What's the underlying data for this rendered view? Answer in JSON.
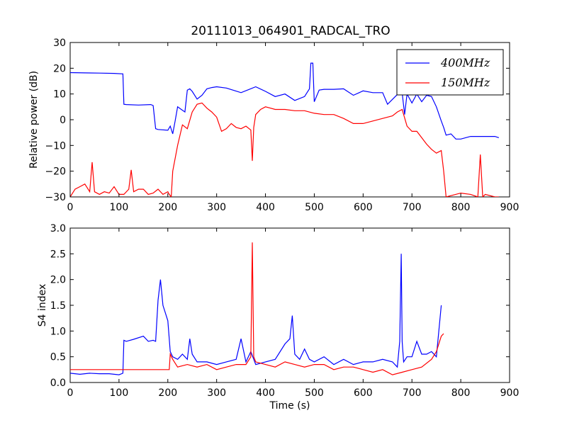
{
  "figure": {
    "title": "20111013_064901_RADCAL_TRO"
  },
  "chart_data": [
    {
      "type": "line",
      "title": "20111013_064901_RADCAL_TRO",
      "xlabel": "",
      "ylabel": "Relative power (dB)",
      "xlim": [
        0,
        900
      ],
      "ylim": [
        -30,
        30
      ],
      "xticks": [
        0,
        100,
        200,
        300,
        400,
        500,
        600,
        700,
        800,
        900
      ],
      "yticks": [
        -30,
        -20,
        -10,
        0,
        10,
        20,
        30
      ],
      "grid": false,
      "legend": "top-right",
      "series": [
        {
          "name": "400MHz",
          "color": "#0000ff",
          "x": [
            0,
            30,
            60,
            90,
            108,
            110,
            115,
            140,
            165,
            170,
            175,
            180,
            200,
            205,
            210,
            215,
            220,
            235,
            240,
            245,
            250,
            260,
            270,
            280,
            290,
            300,
            320,
            350,
            380,
            400,
            420,
            440,
            460,
            480,
            490,
            493,
            497,
            500,
            510,
            520,
            540,
            560,
            580,
            600,
            620,
            640,
            650,
            670,
            680,
            685,
            690,
            700,
            710,
            720,
            730,
            740,
            750,
            760,
            765,
            770,
            780,
            790,
            800,
            820,
            850,
            870,
            878
          ],
          "y": [
            18.3,
            18.2,
            18.1,
            18.0,
            17.8,
            6,
            5.9,
            5.7,
            5.9,
            5.5,
            -3.5,
            -3.8,
            -4.1,
            -2.5,
            -5.5,
            -0.5,
            5,
            3,
            11.5,
            12,
            11,
            8,
            9.5,
            12,
            12.5,
            12.8,
            12.3,
            10.5,
            12.8,
            11,
            9,
            10,
            7.5,
            9,
            12,
            22,
            22,
            7,
            11.5,
            11.8,
            11.8,
            12,
            9.5,
            11.2,
            10.5,
            10.5,
            6,
            9.8,
            10.5,
            2,
            10,
            6.5,
            10,
            7,
            9.5,
            9,
            5,
            -0.5,
            -3,
            -6,
            -5.5,
            -7.5,
            -7.5,
            -6.5,
            -6.5,
            -6.5,
            -7
          ]
        },
        {
          "name": "150MHz",
          "color": "#ff0000",
          "x": [
            0,
            10,
            20,
            30,
            40,
            45,
            50,
            60,
            70,
            80,
            90,
            100,
            110,
            120,
            125,
            130,
            140,
            150,
            160,
            170,
            180,
            190,
            200,
            203,
            207,
            210,
            220,
            230,
            240,
            250,
            260,
            270,
            280,
            290,
            300,
            310,
            320,
            330,
            340,
            350,
            360,
            370,
            373,
            376,
            380,
            390,
            400,
            420,
            440,
            460,
            480,
            500,
            520,
            540,
            560,
            580,
            600,
            620,
            640,
            660,
            670,
            680,
            690,
            700,
            710,
            720,
            730,
            740,
            750,
            760,
            765,
            770,
            780,
            800,
            820,
            835,
            840,
            845,
            850,
            870,
            878
          ],
          "y": [
            -30,
            -27,
            -26,
            -25,
            -28,
            -16.5,
            -28,
            -29,
            -28,
            -28.5,
            -26,
            -29,
            -29,
            -27,
            -19.5,
            -28,
            -27,
            -27,
            -29,
            -28.5,
            -27,
            -29,
            -28,
            -29,
            -30,
            -20,
            -10,
            -2,
            -3.5,
            3,
            6,
            6.5,
            4.5,
            3,
            1,
            -4.5,
            -3.5,
            -1.5,
            -3,
            -3.5,
            -2.5,
            -4,
            -16,
            -3,
            2,
            4,
            5,
            4,
            4,
            3.5,
            3.5,
            2.5,
            2,
            2,
            0.5,
            -1.5,
            -1.5,
            -0.5,
            0.5,
            1.5,
            3,
            4,
            -2.5,
            -4.5,
            -4.5,
            -7,
            -9.5,
            -11.5,
            -13,
            -12,
            -20,
            -30,
            -29.5,
            -28.5,
            -29,
            -30,
            -13.5,
            -30,
            -29,
            -30,
            -30
          ]
        }
      ]
    },
    {
      "type": "line",
      "title": "",
      "xlabel": "Time (s)",
      "ylabel": "S4 index",
      "xlim": [
        0,
        900
      ],
      "ylim": [
        0,
        3
      ],
      "xticks": [
        0,
        100,
        200,
        300,
        400,
        500,
        600,
        700,
        800,
        900
      ],
      "yticks": [
        0.0,
        0.5,
        1.0,
        1.5,
        2.0,
        2.5,
        3.0
      ],
      "grid": false,
      "series": [
        {
          "name": "400MHz",
          "color": "#0000ff",
          "x": [
            0,
            20,
            40,
            60,
            80,
            100,
            108,
            110,
            115,
            130,
            150,
            160,
            170,
            175,
            180,
            185,
            190,
            200,
            205,
            210,
            220,
            230,
            240,
            245,
            250,
            260,
            280,
            300,
            320,
            340,
            350,
            360,
            370,
            380,
            400,
            420,
            440,
            450,
            455,
            460,
            470,
            480,
            490,
            500,
            520,
            540,
            560,
            580,
            600,
            620,
            640,
            660,
            670,
            675,
            678,
            680,
            683,
            690,
            700,
            710,
            720,
            730,
            740,
            750,
            760
          ],
          "y": [
            0.18,
            0.16,
            0.18,
            0.17,
            0.17,
            0.15,
            0.18,
            0.82,
            0.8,
            0.84,
            0.9,
            0.8,
            0.82,
            0.8,
            1.6,
            2.0,
            1.5,
            1.2,
            0.6,
            0.5,
            0.45,
            0.55,
            0.45,
            0.85,
            0.55,
            0.4,
            0.4,
            0.35,
            0.4,
            0.45,
            0.85,
            0.4,
            0.6,
            0.35,
            0.4,
            0.45,
            0.75,
            0.85,
            1.3,
            0.55,
            0.45,
            0.65,
            0.45,
            0.4,
            0.5,
            0.35,
            0.45,
            0.35,
            0.4,
            0.4,
            0.45,
            0.4,
            0.3,
            0.8,
            2.5,
            0.8,
            0.4,
            0.5,
            0.5,
            0.8,
            0.55,
            0.55,
            0.6,
            0.5,
            1.5
          ]
        },
        {
          "name": "150MHz",
          "color": "#ff0000",
          "x": [
            0,
            20,
            40,
            60,
            80,
            100,
            110,
            120,
            140,
            160,
            180,
            200,
            203,
            205,
            210,
            220,
            240,
            260,
            280,
            300,
            320,
            340,
            360,
            370,
            373,
            376,
            380,
            400,
            420,
            440,
            460,
            480,
            500,
            520,
            540,
            560,
            580,
            600,
            620,
            640,
            660,
            680,
            700,
            720,
            740,
            750,
            760,
            765
          ],
          "y": [
            0.25,
            0.25,
            0.25,
            0.25,
            0.25,
            0.25,
            0.25,
            0.25,
            0.25,
            0.25,
            0.25,
            0.25,
            0.25,
            0.55,
            0.45,
            0.3,
            0.35,
            0.3,
            0.35,
            0.25,
            0.3,
            0.35,
            0.35,
            0.5,
            2.72,
            0.5,
            0.4,
            0.35,
            0.3,
            0.4,
            0.35,
            0.3,
            0.35,
            0.35,
            0.25,
            0.3,
            0.3,
            0.25,
            0.2,
            0.25,
            0.15,
            0.2,
            0.25,
            0.3,
            0.45,
            0.6,
            0.9,
            0.95
          ]
        }
      ]
    }
  ]
}
